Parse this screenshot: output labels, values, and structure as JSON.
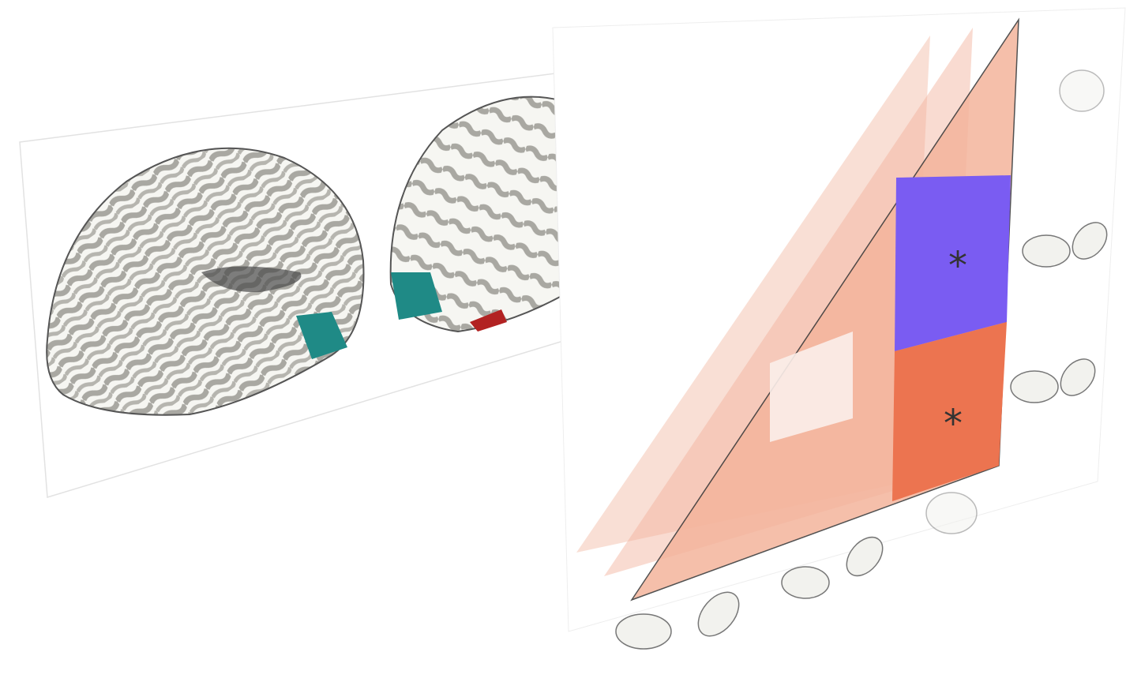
{
  "annotations": [
    "*",
    "*"
  ]
}
